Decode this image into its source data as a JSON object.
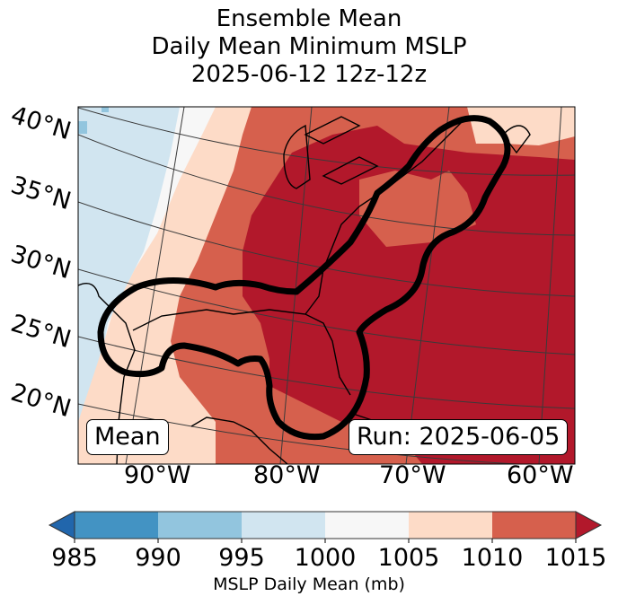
{
  "title": {
    "line1": "Ensemble Mean",
    "line2": "Daily Mean Minimum MSLP",
    "line3": "2025-06-12 12z-12z"
  },
  "map": {
    "lat_labels": [
      "40°N",
      "35°N",
      "30°N",
      "25°N",
      "20°N"
    ],
    "lon_labels": [
      "90°W",
      "80°W",
      "70°W",
      "60°W"
    ],
    "stat_box": "Mean",
    "run_box": "Run: 2025-06-05",
    "contour_color": "#000000"
  },
  "colorbar": {
    "levels": [
      985,
      990,
      995,
      1000,
      1005,
      1010,
      1015
    ],
    "tick_labels": [
      "985",
      "990",
      "995",
      "1000",
      "1005",
      "1010",
      "1015"
    ],
    "colors": [
      "#4393c3",
      "#92c5de",
      "#d1e5f0",
      "#f7f7f7",
      "#fddbc7",
      "#d6604d"
    ],
    "under_color": "#2166ac",
    "over_color": "#b2182b",
    "label": "MSLP Daily Mean (mb)",
    "extend": "both"
  }
}
